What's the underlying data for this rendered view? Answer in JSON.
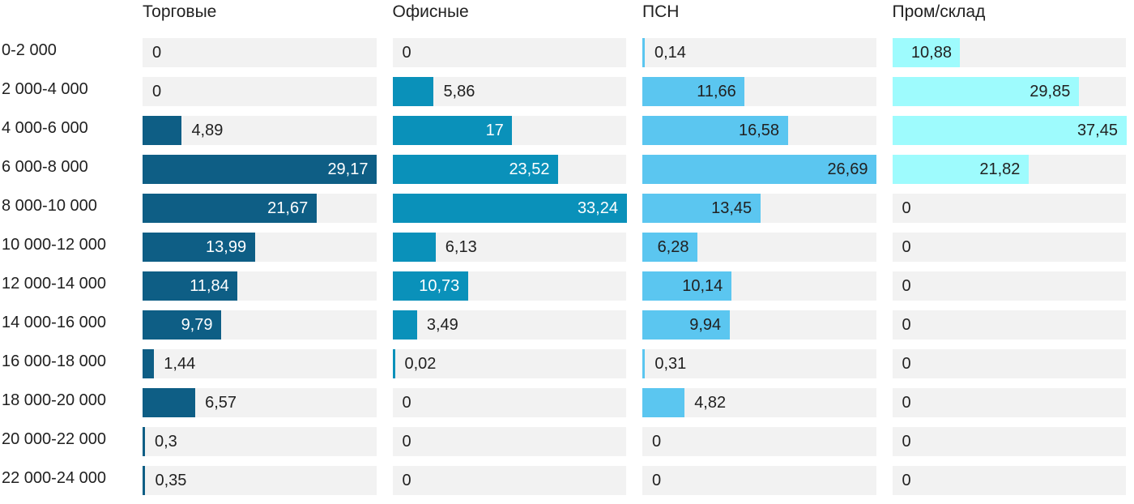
{
  "chart_data": {
    "type": "bar",
    "orientation": "horizontal",
    "title": "",
    "xlabel": "",
    "ylabel": "",
    "grid": false,
    "legend_position": "column-headers-top",
    "scaling": "per_series_max",
    "decimal_separator": ",",
    "track_color": "#f2f2f2",
    "text_color": "#212121",
    "categories": [
      "0-2 000",
      "2 000-4 000",
      "4 000-6 000",
      "6 000-8 000",
      "8 000-10 000",
      "10 000-12 000",
      "12 000-14 000",
      "14 000-16 000",
      "16 000-18 000",
      "18 000-20 000",
      "20 000-22 000",
      "22 000-24 000"
    ],
    "series": [
      {
        "name": "Торговые",
        "color": "#0e5e85",
        "value_color_on_bar": "#ffffff",
        "values": [
          0,
          0,
          4.89,
          29.17,
          21.67,
          13.99,
          11.84,
          9.79,
          1.44,
          6.57,
          0.3,
          0.35
        ]
      },
      {
        "name": "Офисные",
        "color": "#0a91ba",
        "value_color_on_bar": "#ffffff",
        "values": [
          0,
          5.86,
          17,
          23.52,
          33.24,
          6.13,
          10.73,
          3.49,
          0.02,
          0,
          0,
          0
        ]
      },
      {
        "name": "ПСН",
        "color": "#5bc6f0",
        "value_color_on_bar": "#212121",
        "values": [
          0.14,
          11.66,
          16.58,
          26.69,
          13.45,
          6.28,
          10.14,
          9.94,
          0.31,
          4.82,
          0,
          0
        ]
      },
      {
        "name": "Пром/склад",
        "color": "#9efbfd",
        "value_color_on_bar": "#212121",
        "values": [
          10.88,
          29.85,
          37.45,
          21.82,
          0,
          0,
          0,
          0,
          0,
          0,
          0,
          0
        ]
      }
    ]
  }
}
